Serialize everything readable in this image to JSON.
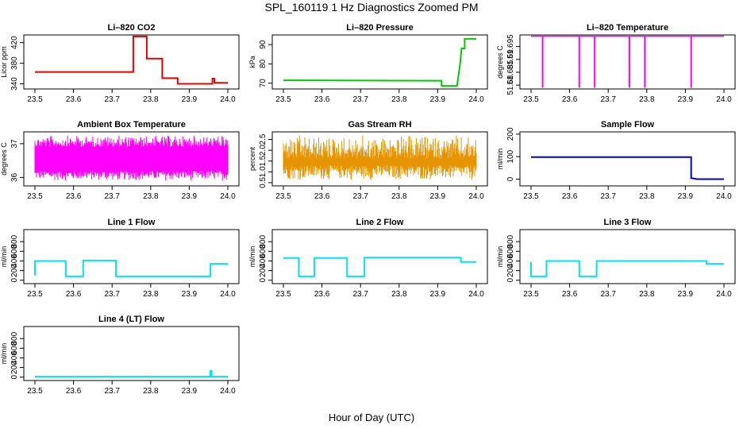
{
  "figure": {
    "title": "SPL_160119  1 Hz Diagnostics Zoomed PM",
    "xlabel": "Hour of Day (UTC)"
  },
  "colors": {
    "red": "#ee0000",
    "green": "#00cc00",
    "magenta": "#ff00ff",
    "orange": "#e69500",
    "blue": "#0000cc",
    "cyan": "#00e5ee"
  },
  "chart_data": [
    {
      "type": "line",
      "title": "Li–820 CO2",
      "ylabel": "Licor ppm",
      "color": "#ee0000",
      "xlim": [
        23.5,
        24.0
      ],
      "ylim": [
        330,
        435
      ],
      "yticks": [
        340,
        380,
        420
      ],
      "xticks": [
        "23.5",
        "23.6",
        "23.7",
        "23.8",
        "23.9",
        "24.0"
      ],
      "x": [
        23.5,
        23.755,
        23.755,
        23.79,
        23.79,
        23.83,
        23.83,
        23.87,
        23.87,
        23.96,
        23.96,
        23.965,
        23.965,
        24.0
      ],
      "y": [
        363,
        363,
        432,
        432,
        389,
        389,
        351,
        351,
        340,
        340,
        350,
        350,
        342,
        342
      ]
    },
    {
      "type": "line",
      "title": "Li–820 Pressure",
      "ylabel": "kPa",
      "color": "#00cc00",
      "xlim": [
        23.5,
        24.0
      ],
      "ylim": [
        67,
        95
      ],
      "yticks": [
        70,
        80,
        90
      ],
      "xticks": [
        "23.5",
        "23.6",
        "23.7",
        "23.8",
        "23.9",
        "24.0"
      ],
      "x": [
        23.5,
        23.9,
        23.91,
        23.91,
        23.95,
        23.958,
        23.962,
        23.97,
        23.97,
        24.0
      ],
      "y": [
        71.5,
        71.3,
        71.3,
        68.6,
        68.6,
        80,
        88,
        88,
        93,
        93
      ]
    },
    {
      "type": "line",
      "title": "Li–820 Temperature",
      "ylabel": "degrees C",
      "color": "#ff00ff",
      "xlim": [
        23.5,
        24.0
      ],
      "ylim": [
        51.6785,
        51.6995
      ],
      "yticks": [
        51.68,
        51.685,
        51.69,
        51.695
      ],
      "xticks": [
        "23.5",
        "23.6",
        "23.7",
        "23.8",
        "23.9",
        "24.0"
      ],
      "baseline": 51.699,
      "dip_to": 51.679,
      "dips_x": [
        23.53,
        23.625,
        23.665,
        23.755,
        23.795,
        23.915
      ]
    },
    {
      "type": "line",
      "title": "Ambient Box Temperature",
      "ylabel": "degrees C",
      "color": "#ff00ff",
      "xlim": [
        23.5,
        24.0
      ],
      "ylim": [
        35.75,
        37.35
      ],
      "yticks": [
        36.0,
        37.0
      ],
      "xticks": [
        "23.5",
        "23.6",
        "23.7",
        "23.8",
        "23.9",
        "24.0"
      ],
      "band_low": [
        35.9,
        36.2
      ],
      "band_high": [
        36.9,
        37.25
      ]
    },
    {
      "type": "line",
      "title": "Gas Stream RH",
      "ylabel": "percent",
      "color": "#e69500",
      "xlim": [
        23.5,
        24.0
      ],
      "ylim": [
        0.35,
        2.85
      ],
      "yticks": [
        0.5,
        1.0,
        1.5,
        2.0,
        2.5
      ],
      "xticks": [
        "23.5",
        "23.6",
        "23.7",
        "23.8",
        "23.9",
        "24.0"
      ],
      "band_low": [
        0.6,
        1.3
      ],
      "band_high": [
        1.6,
        2.7
      ]
    },
    {
      "type": "line",
      "title": "Sample Flow",
      "ylabel": "ml/min",
      "color": "#0000cc",
      "xlim": [
        23.5,
        24.0
      ],
      "ylim": [
        -30,
        210
      ],
      "yticks": [
        0,
        100,
        200
      ],
      "xticks": [
        "23.5",
        "23.6",
        "23.7",
        "23.8",
        "23.9",
        "24.0"
      ],
      "x": [
        23.5,
        23.915,
        23.915,
        23.93,
        23.93,
        24.0
      ],
      "y": [
        98,
        98,
        5,
        0,
        0,
        0
      ]
    },
    {
      "type": "line",
      "title": "Line 1 Flow",
      "ylabel": "ml/min",
      "color": "#00e5ee",
      "xlim": [
        23.5,
        24.0
      ],
      "ylim": [
        -70,
        1050
      ],
      "yticks": [
        0,
        200,
        400,
        600,
        800
      ],
      "xticks": [
        "23.5",
        "23.6",
        "23.7",
        "23.8",
        "23.9",
        "24.0"
      ],
      "x": [
        23.5,
        23.5,
        23.58,
        23.58,
        23.625,
        23.625,
        23.71,
        23.71,
        23.955,
        23.955,
        24.0
      ],
      "y": [
        100,
        400,
        400,
        80,
        80,
        410,
        410,
        80,
        80,
        340,
        340
      ]
    },
    {
      "type": "line",
      "title": "Line 2 Flow",
      "ylabel": "ml/min",
      "color": "#00e5ee",
      "xlim": [
        23.5,
        24.0
      ],
      "ylim": [
        -70,
        1050
      ],
      "yticks": [
        0,
        200,
        400,
        600,
        800
      ],
      "xticks": [
        "23.5",
        "23.6",
        "23.7",
        "23.8",
        "23.9",
        "24.0"
      ],
      "x": [
        23.5,
        23.54,
        23.54,
        23.58,
        23.58,
        23.665,
        23.665,
        23.71,
        23.71,
        23.96,
        23.96,
        24.0
      ],
      "y": [
        460,
        460,
        80,
        80,
        460,
        460,
        80,
        80,
        470,
        470,
        380,
        380
      ]
    },
    {
      "type": "line",
      "title": "Line 3 Flow",
      "ylabel": "ml/min",
      "color": "#00e5ee",
      "xlim": [
        23.5,
        24.0
      ],
      "ylim": [
        -70,
        1050
      ],
      "yticks": [
        0,
        200,
        400,
        600,
        800
      ],
      "xticks": [
        "23.5",
        "23.6",
        "23.7",
        "23.8",
        "23.9",
        "24.0"
      ],
      "x": [
        23.5,
        23.5,
        23.54,
        23.54,
        23.625,
        23.625,
        23.67,
        23.67,
        23.955,
        23.955,
        24.0
      ],
      "y": [
        380,
        80,
        80,
        400,
        400,
        80,
        80,
        400,
        400,
        340,
        340
      ]
    },
    {
      "type": "line",
      "title": "Line 4 (LT) Flow",
      "ylabel": "ml/min",
      "color": "#00e5ee",
      "xlim": [
        23.5,
        24.0
      ],
      "ylim": [
        -70,
        1050
      ],
      "yticks": [
        0,
        200,
        400,
        600,
        800
      ],
      "xticks": [
        "23.5",
        "23.6",
        "23.7",
        "23.8",
        "23.9",
        "24.0"
      ],
      "x": [
        23.5,
        23.955,
        23.955,
        23.958,
        23.958,
        24.0
      ],
      "y": [
        10,
        10,
        130,
        130,
        10,
        10
      ]
    }
  ]
}
